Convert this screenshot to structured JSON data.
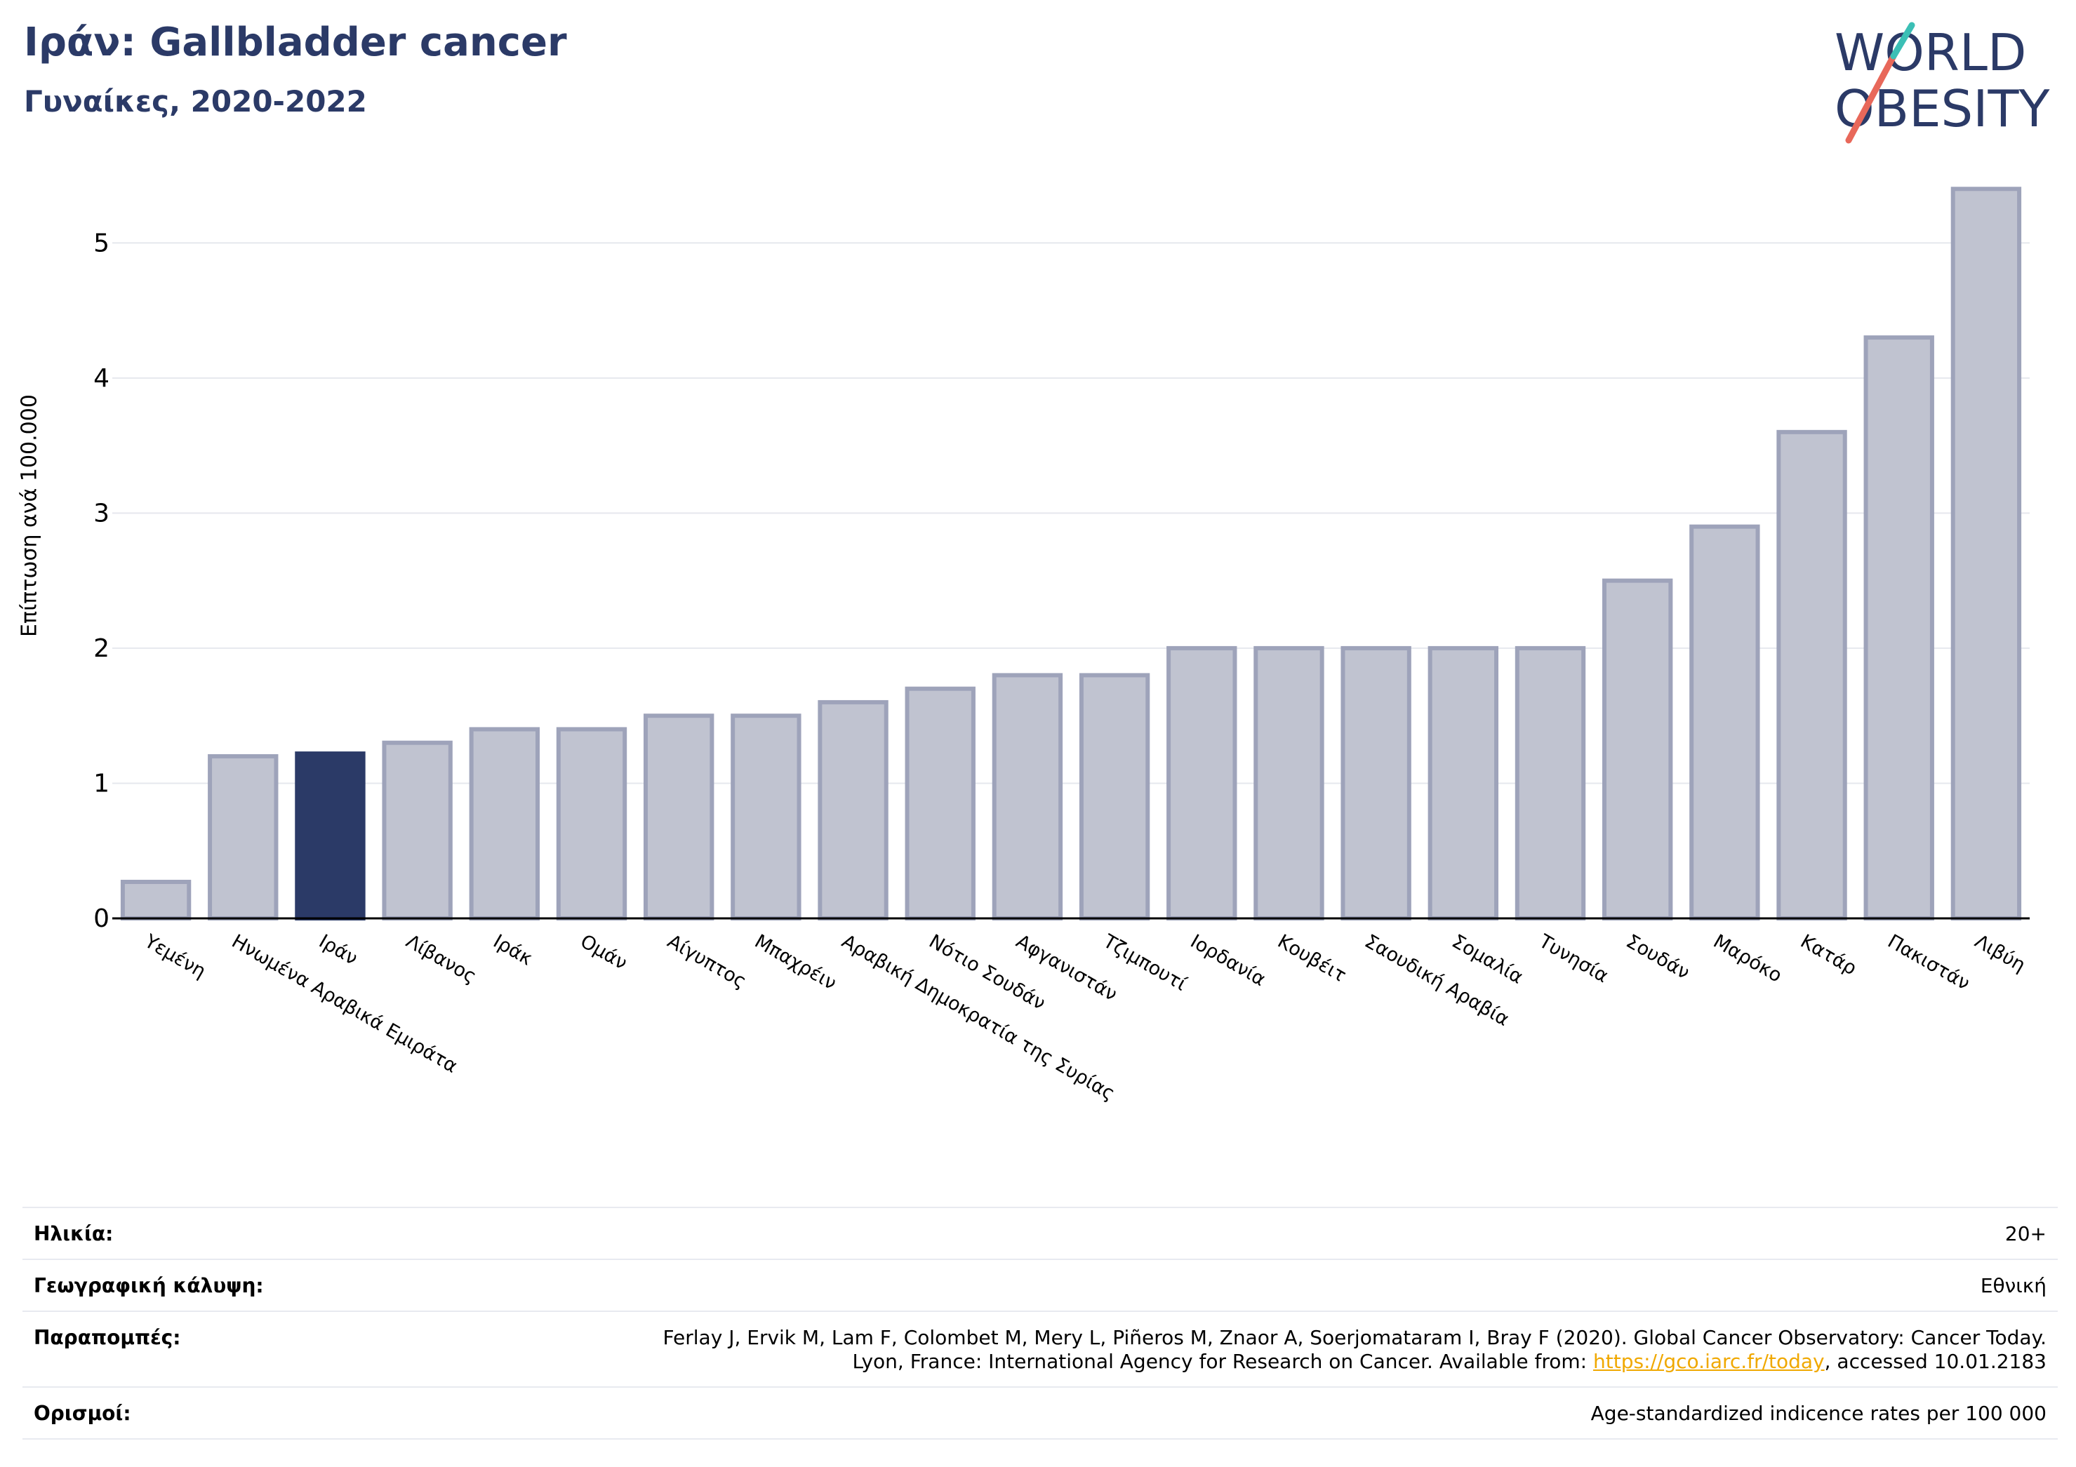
{
  "header": {
    "title": "Ιράν: Gallbladder cancer",
    "subtitle": "Γυναίκες, 2020-2022"
  },
  "logo": {
    "line1": "WORLD",
    "line2": "OBESITY"
  },
  "chart_data": {
    "type": "bar",
    "ylabel": "Επίπτωση ανά 100.000",
    "ylim": [
      0,
      5.5
    ],
    "yticks": [
      0,
      1,
      2,
      3,
      4,
      5
    ],
    "grid": true,
    "highlight": "Ιράν",
    "categories": [
      "Υεμένη",
      "Ηνωμένα Αραβικά Εμιράτα",
      "Ιράν",
      "Λίβανος",
      "Ιράκ",
      "Ομάν",
      "Αίγυπτος",
      "Μπαχρέιν",
      "Αραβική Δημοκρατία της Συρίας",
      "Νότιο Σουδάν",
      "Αφγανιστάν",
      "Τζιμπουτί",
      "Ιορδανία",
      "Κουβέιτ",
      "Σαουδική Αραβία",
      "Σομαλία",
      "Τυνησία",
      "Σουδάν",
      "Μαρόκο",
      "Κατάρ",
      "Πακιστάν",
      "Λιβύη"
    ],
    "values": [
      0.27,
      1.2,
      1.22,
      1.3,
      1.4,
      1.4,
      1.5,
      1.5,
      1.6,
      1.7,
      1.8,
      1.8,
      2.0,
      2.0,
      2.0,
      2.0,
      2.0,
      2.5,
      2.9,
      3.6,
      4.3,
      5.4
    ],
    "colors": {
      "bar": "#c0c3d0",
      "bar_edge": "#9ea3ba",
      "highlight": "#2b3a67",
      "grid": "#e6e8ee"
    }
  },
  "meta": {
    "age_label": "Ηλικία:",
    "age_value": "20+",
    "coverage_label": "Γεωγραφική κάλυψη:",
    "coverage_value": "Εθνική",
    "refs_label": "Παραπομπές:",
    "refs_line1": "Ferlay J, Ervik M, Lam F, Colombet M, Mery L, Piñeros M, Znaor A, Soerjomataram I, Bray F (2020). Global Cancer Observatory: Cancer Today.",
    "refs_line2_pre": "Lyon, France: International Agency for Research on Cancer. Available from: ",
    "refs_link": "https://gco.iarc.fr/today",
    "refs_line2_post": ", accessed 10.01.2183",
    "definitions_label": "Ορισμοί:",
    "definitions_value": "Age-standardized indicence rates per 100 000"
  }
}
